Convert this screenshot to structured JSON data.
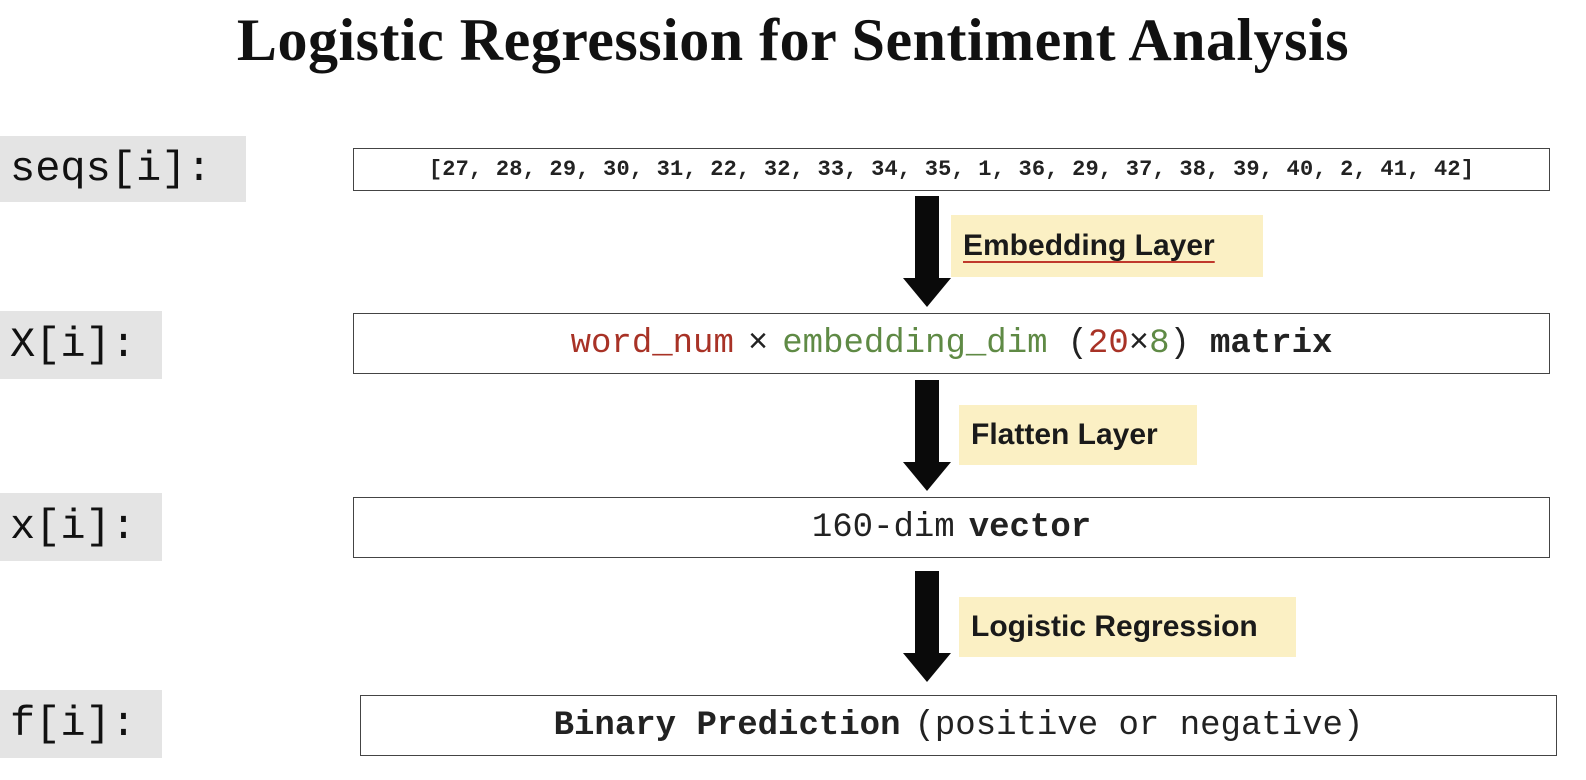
{
  "title": "Logistic Regression for Sentiment Analysis",
  "rows": {
    "seqs": {
      "label": "seqs[i]:",
      "content": "[27, 28, 29, 30, 31, 22, 32, 33, 34, 35, 1, 36, 29, 37, 38, 39, 40, 2, 41, 42]"
    },
    "X": {
      "label": "X[i]:",
      "word_num": "word_num",
      "times": "×",
      "embedding_dim": "embedding_dim",
      "paren_open": "(",
      "dim_rows": "20",
      "dim_times": "×",
      "dim_cols": "8",
      "paren_close": ")",
      "kind": "matrix"
    },
    "x": {
      "label": "x[i]:",
      "dim": "160-dim",
      "kind": "vector"
    },
    "f": {
      "label": "f[i]:",
      "kind": "Binary Prediction",
      "note": "(positive or negative)"
    }
  },
  "layers": {
    "embedding": "Embedding Layer",
    "flatten": "Flatten Layer",
    "logistic": "Logistic Regression"
  },
  "colors": {
    "word_num": "#a83226",
    "embedding_dim": "#5f8a45",
    "label_bg": "#e4e4e4",
    "layer_bg": "#fbf0c4"
  }
}
